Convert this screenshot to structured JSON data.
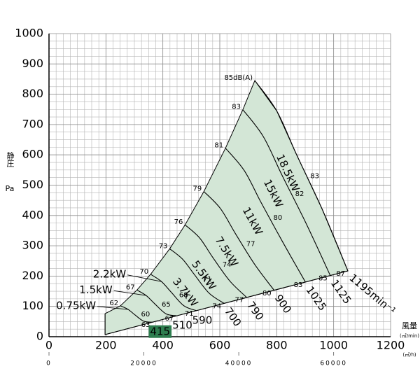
{
  "chart_data": {
    "type": "line",
    "ylabel": "静圧",
    "yunit": "Pa",
    "xlabel": "風量",
    "xunit": "(㎥/min)",
    "x2unit": "(㎥/h)",
    "xlim": [
      0,
      1200
    ],
    "xticks": [
      0,
      200,
      400,
      600,
      800,
      1000,
      1200
    ],
    "ylim": [
      0,
      1000
    ],
    "yticks": [
      0,
      100,
      200,
      300,
      400,
      500,
      600,
      700,
      800,
      900,
      1000
    ],
    "x2lim": [
      0,
      72000
    ],
    "x2ticks": [
      0,
      20000,
      40000,
      60000
    ],
    "grid": true,
    "color": "#000000",
    "area_color": "#d3e6d6",
    "highlight_color": "#2e7d4f",
    "system_line": {
      "x": [
        197,
        1050
      ],
      "y": [
        7,
        217
      ]
    },
    "left_edge": {
      "x": [
        197,
        197
      ],
      "y": [
        7,
        76
      ]
    },
    "series": [
      {
        "name": "415",
        "power": "0.75kW",
        "x": [
          251,
          278,
          302,
          333,
          365
        ],
        "y": [
          102,
          90,
          72,
          51,
          48
        ],
        "db": [
          62,
          60,
          63
        ]
      },
      {
        "name": "510",
        "power": "1.5kW",
        "x": [
          309,
          341,
          371,
          410,
          448
        ],
        "y": [
          154,
          136,
          109,
          76,
          69
        ],
        "db": [
          67,
          65,
          67
        ]
      },
      {
        "name": "590",
        "power": "2.2kW",
        "x": [
          357,
          395,
          430,
          474,
          518
        ],
        "y": [
          206,
          182,
          146,
          102,
          86
        ],
        "db": [
          70,
          68,
          71
        ]
      },
      {
        "name": "700",
        "power": "3.7kW",
        "x": [
          424,
          469,
          510,
          562,
          615
        ],
        "y": [
          290,
          256,
          206,
          144,
          110
        ],
        "db": [
          73,
          71,
          74
        ]
      },
      {
        "name": "790",
        "power": "5.5kW",
        "x": [
          478,
          529,
          575,
          635,
          694
        ],
        "y": [
          369,
          326,
          262,
          184,
          130
        ],
        "db": [
          76,
          74,
          77
        ]
      },
      {
        "name": "900",
        "power": "7.5kW",
        "x": [
          544,
          602,
          655,
          723,
          791
        ],
        "y": [
          479,
          423,
          340,
          238,
          153
        ],
        "db": [
          79,
          77,
          80
        ]
      },
      {
        "name": "1025",
        "power": "11kW",
        "x": [
          620,
          686,
          746,
          823,
          901
        ],
        "y": [
          622,
          548,
          441,
          309,
          180
        ],
        "db": [
          81,
          80,
          83
        ]
      },
      {
        "name": "1125",
        "power": "15kW",
        "x": [
          681,
          753,
          819,
          904,
          988
        ],
        "y": [
          749,
          660,
          532,
          372,
          202
        ],
        "db": [
          83,
          82,
          85
        ]
      },
      {
        "name": "1195min⁻¹",
        "power": "18.5kW",
        "x": [
          723,
          800,
          870,
          960,
          1050
        ],
        "y": [
          845,
          745,
          600,
          420,
          217
        ],
        "db": [
          {
            "value": 85,
            "label": "85dB(A)"
          },
          83,
          87
        ]
      }
    ]
  }
}
